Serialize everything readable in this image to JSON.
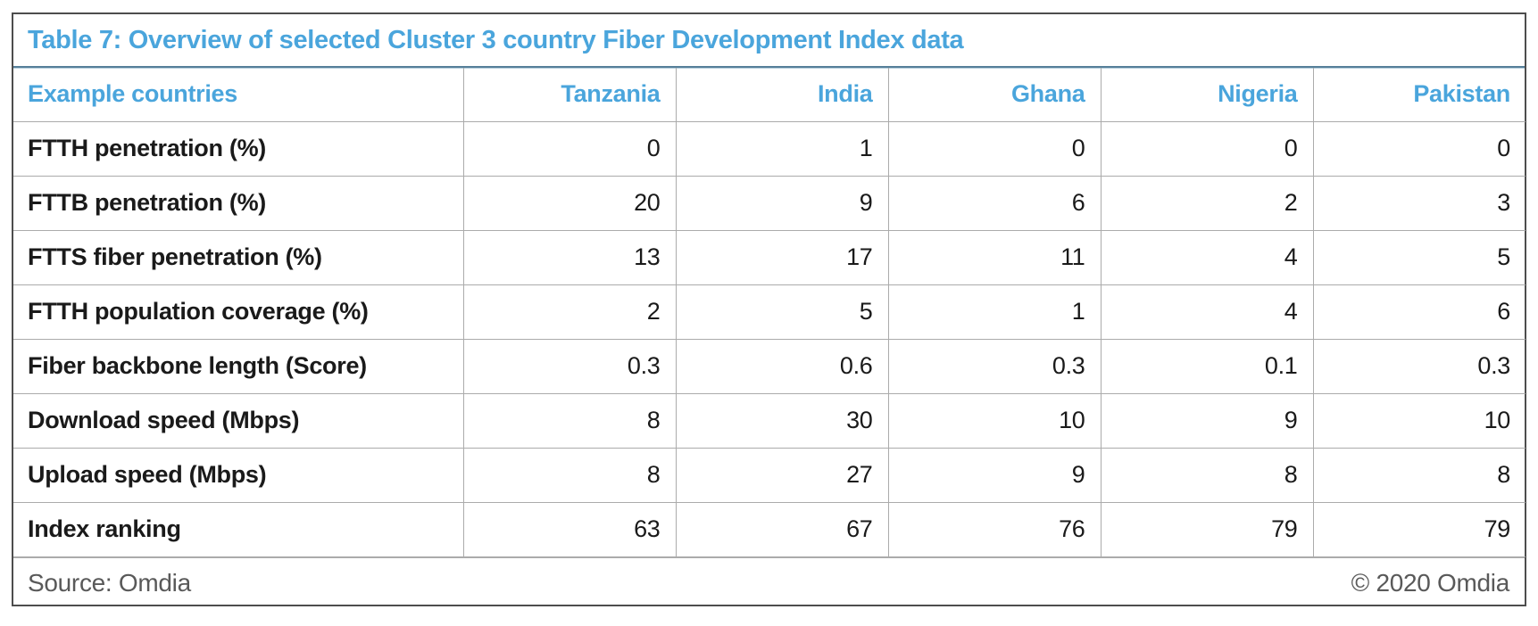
{
  "colors": {
    "accent_blue": "#4AA5DC",
    "title_divider": "#567F99",
    "border_outer": "#4D4D4D",
    "border_inner": "#ABABAB",
    "body_text": "#1A1A1A",
    "footer_text": "#595959",
    "background": "#FFFFFF"
  },
  "chart_data": {
    "type": "table",
    "title": "Table 7: Overview of selected Cluster 3 country Fiber Development Index data",
    "columns": [
      "Example countries",
      "Tanzania",
      "India",
      "Ghana",
      "Nigeria",
      "Pakistan"
    ],
    "rows": [
      {
        "label": "FTTH penetration (%)",
        "values": [
          0,
          1,
          0,
          0,
          0
        ]
      },
      {
        "label": "FTTB penetration (%)",
        "values": [
          20,
          9,
          6,
          2,
          3
        ]
      },
      {
        "label": "FTTS fiber penetration (%)",
        "values": [
          13,
          17,
          11,
          4,
          5
        ]
      },
      {
        "label": "FTTH population coverage (%)",
        "values": [
          2,
          5,
          1,
          4,
          6
        ]
      },
      {
        "label": "Fiber backbone length (Score)",
        "values": [
          0.3,
          0.6,
          0.3,
          0.1,
          0.3
        ]
      },
      {
        "label": "Download speed (Mbps)",
        "values": [
          8,
          30,
          10,
          9,
          10
        ]
      },
      {
        "label": "Upload speed (Mbps)",
        "values": [
          8,
          27,
          9,
          8,
          8
        ]
      },
      {
        "label": "Index ranking",
        "values": [
          63,
          67,
          76,
          79,
          79
        ]
      }
    ],
    "footer": {
      "source": "Source: Omdia",
      "copyright": "© 2020 Omdia"
    }
  }
}
